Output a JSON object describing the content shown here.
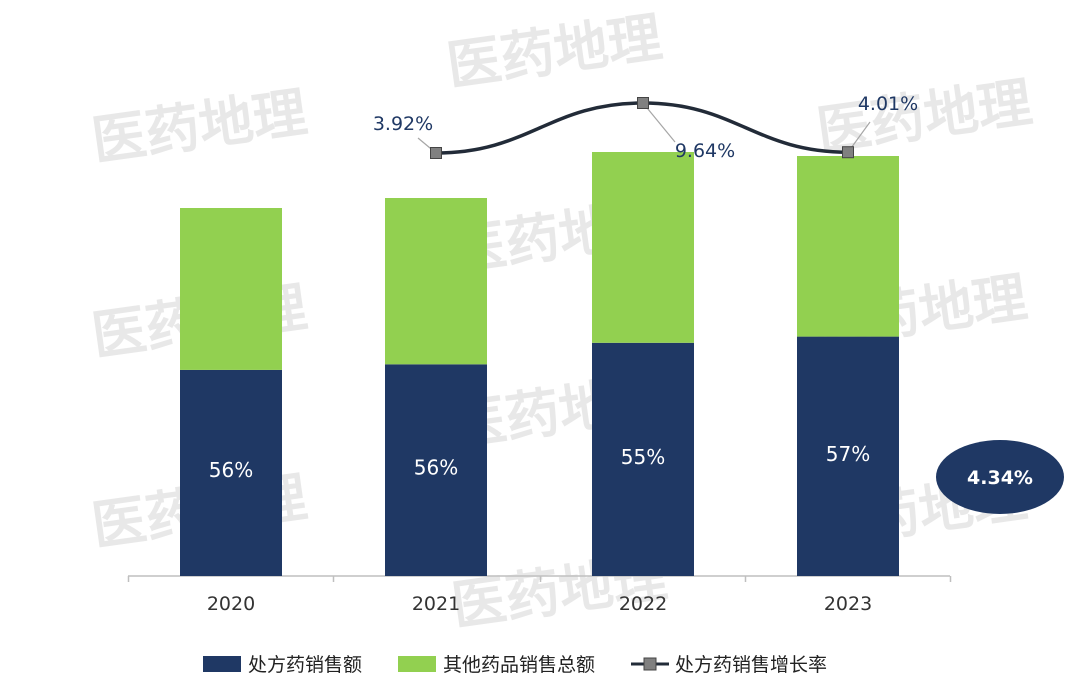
{
  "chart_data": {
    "type": "bar",
    "stacked": true,
    "categories": [
      "2020",
      "2021",
      "2022",
      "2023"
    ],
    "series": [
      {
        "name": "处方药销售额",
        "values": [
          0.56,
          0.56,
          0.55,
          0.57
        ],
        "labels": [
          "56%",
          "56%",
          "55%",
          "57%"
        ],
        "color": "#1f3864"
      },
      {
        "name": "其他药品销售总额",
        "values": [
          0.44,
          0.44,
          0.45,
          0.43
        ],
        "color": "#92d050"
      }
    ],
    "bar_totals_relative": [
      0.92,
      0.945,
      1.06,
      1.05
    ],
    "line_series": {
      "name": "处方药销售增长率",
      "categories": [
        "2021",
        "2022",
        "2023"
      ],
      "values": [
        3.92,
        9.64,
        4.01
      ],
      "labels": [
        "3.92%",
        "9.64%",
        "4.01%"
      ],
      "color": "#222b38",
      "marker_color": "#808080"
    },
    "callout": {
      "text": "4.34%",
      "color": "#1f3864"
    },
    "legend": {
      "position": "bottom"
    },
    "grid": false
  },
  "watermark": "医药地理"
}
